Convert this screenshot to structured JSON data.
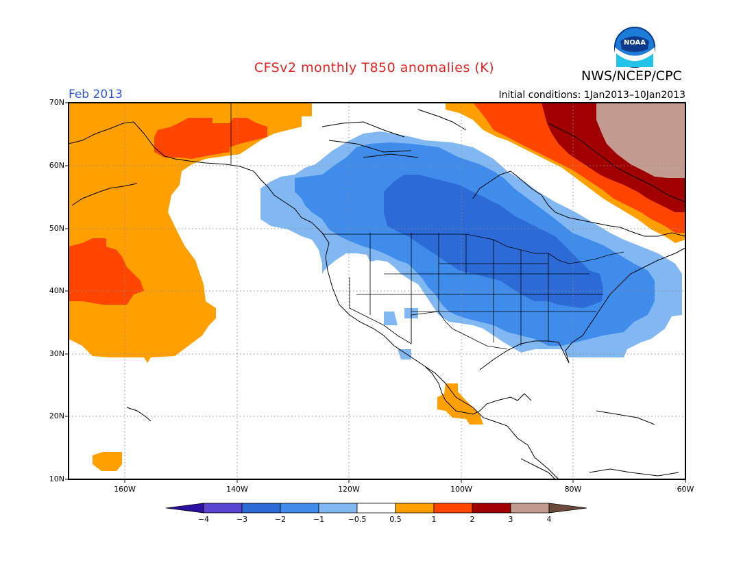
{
  "header": {
    "title": "CFSv2 monthly T850 anomalies (K)",
    "agency": "NWS/NCEP/CPC",
    "period": "Feb 2013",
    "initial_conditions": "Initial conditions: 1Jan2013–10Jan2013",
    "logo_text": "NOAA"
  },
  "axes": {
    "lat_labels": [
      "70N",
      "60N",
      "50N",
      "40N",
      "30N",
      "20N",
      "10N"
    ],
    "lon_labels": [
      "160W",
      "140W",
      "120W",
      "100W",
      "80W",
      "60W"
    ],
    "lon_range": [
      -170,
      -60
    ],
    "lat_range": [
      10,
      70
    ],
    "grid": "dotted"
  },
  "colorbar": {
    "labels": [
      "−4",
      "−3",
      "−2",
      "−1",
      "−0.5",
      "0.5",
      "1",
      "2",
      "3",
      "4"
    ],
    "colors": [
      "#2b0fa0",
      "#5a45d1",
      "#2c6bd6",
      "#3f8ceb",
      "#82b8f2",
      "#ffffff",
      "#ffa000",
      "#ff4500",
      "#a00000",
      "#c39b90",
      "#6b4a3a"
    ]
  },
  "anomaly_regions": [
    {
      "name": "NE Pacific warm",
      "category": "0.5 to 1"
    },
    {
      "name": "Alaska warm core",
      "category": "1 to 2"
    },
    {
      "name": "Hawaii NE warm core",
      "category": "1 to 2"
    },
    {
      "name": "Canada / central US cold",
      "category": "-1 to -0.5"
    },
    {
      "name": "Hudson Bay cold core",
      "category": "-2 to -1"
    },
    {
      "name": "Great Lakes cold core",
      "category": "-3 to -2"
    },
    {
      "name": "Greenland / Labrador warm",
      "category": "3 to 4"
    },
    {
      "name": "Mexico warm patch",
      "category": "0.5 to 1"
    }
  ]
}
